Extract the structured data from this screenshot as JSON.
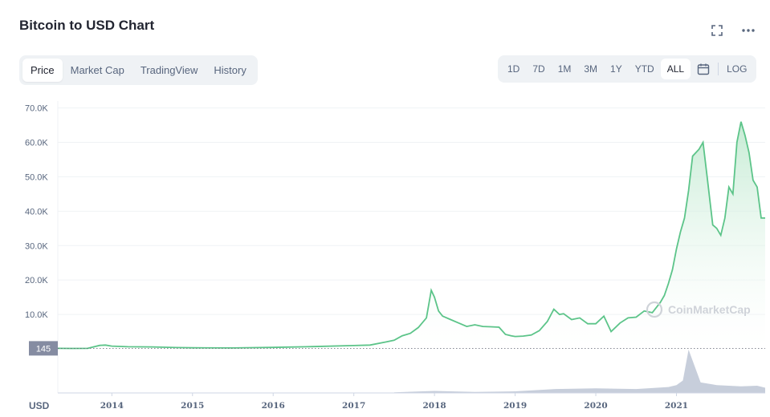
{
  "header": {
    "title": "Bitcoin to USD Chart",
    "expand_icon": "expand-icon",
    "more_icon": "more-icon"
  },
  "tabs": [
    {
      "label": "Price",
      "active": true
    },
    {
      "label": "Market Cap",
      "active": false
    },
    {
      "label": "TradingView",
      "active": false
    },
    {
      "label": "History",
      "active": false
    }
  ],
  "ranges": [
    {
      "label": "1D",
      "active": false
    },
    {
      "label": "7D",
      "active": false
    },
    {
      "label": "1M",
      "active": false
    },
    {
      "label": "3M",
      "active": false
    },
    {
      "label": "1Y",
      "active": false
    },
    {
      "label": "YTD",
      "active": false
    },
    {
      "label": "ALL",
      "active": true
    }
  ],
  "calendar_icon": "calendar-icon",
  "log_label": "LOG",
  "watermark": "CoinMarketCap",
  "colors": {
    "line": "#5cc489",
    "area_top": "#bfe9cf",
    "baseline_label_bg": "#858ca2",
    "volume": "#c7cedb",
    "grid": "#eff2f5"
  },
  "chart_data": {
    "type": "area",
    "title": "Bitcoin to USD Chart",
    "currency_label": "USD",
    "baseline_label": "145",
    "baseline_value": 145,
    "yticks": [
      {
        "value": 10000,
        "label": "10.0K"
      },
      {
        "value": 20000,
        "label": "20.0K"
      },
      {
        "value": 30000,
        "label": "30.0K"
      },
      {
        "value": 40000,
        "label": "40.0K"
      },
      {
        "value": 50000,
        "label": "50.0K"
      },
      {
        "value": 60000,
        "label": "60.0K"
      },
      {
        "value": 70000,
        "label": "70.0K"
      }
    ],
    "ylim": [
      0,
      72000
    ],
    "xticks": [
      {
        "value": 2014,
        "label": "2014"
      },
      {
        "value": 2015,
        "label": "2015"
      },
      {
        "value": 2016,
        "label": "2016"
      },
      {
        "value": 2017,
        "label": "2017"
      },
      {
        "value": 2018,
        "label": "2018"
      },
      {
        "value": 2019,
        "label": "2019"
      },
      {
        "value": 2020,
        "label": "2020"
      },
      {
        "value": 2021,
        "label": "2021"
      }
    ],
    "xlim": [
      2013.33,
      2022.1
    ],
    "series": [
      {
        "x": [
          2013.33,
          2013.5,
          2013.7,
          2013.85,
          2013.92,
          2014.0,
          2014.2,
          2014.5,
          2014.8,
          2015.0,
          2015.5,
          2016.0,
          2016.5,
          2017.0,
          2017.2,
          2017.4,
          2017.5,
          2017.6,
          2017.7,
          2017.8,
          2017.9,
          2017.96,
          2018.0,
          2018.05,
          2018.1,
          2018.2,
          2018.3,
          2018.4,
          2018.5,
          2018.6,
          2018.7,
          2018.8,
          2018.88,
          2018.95,
          2019.0,
          2019.1,
          2019.2,
          2019.3,
          2019.4,
          2019.48,
          2019.55,
          2019.6,
          2019.7,
          2019.8,
          2019.9,
          2020.0,
          2020.1,
          2020.19,
          2020.3,
          2020.4,
          2020.5,
          2020.6,
          2020.7,
          2020.8,
          2020.85,
          2020.9,
          2020.95,
          2021.0,
          2021.05,
          2021.1,
          2021.15,
          2021.2,
          2021.28,
          2021.33,
          2021.38,
          2021.45,
          2021.5,
          2021.55,
          2021.6,
          2021.65,
          2021.7,
          2021.75,
          2021.8,
          2021.85,
          2021.9,
          2021.95,
          2022.0,
          2022.05,
          2022.1
        ],
        "y": [
          145,
          110,
          130,
          1000,
          1100,
          800,
          600,
          550,
          380,
          300,
          250,
          420,
          650,
          950,
          1100,
          2000,
          2500,
          3800,
          4500,
          6200,
          9000,
          17000,
          15000,
          11000,
          9500,
          8500,
          7500,
          6500,
          7000,
          6500,
          6400,
          6300,
          4200,
          3800,
          3600,
          3700,
          4000,
          5300,
          8000,
          11500,
          10000,
          10200,
          8500,
          9000,
          7300,
          7300,
          9500,
          5000,
          7500,
          9000,
          9200,
          11000,
          10500,
          13500,
          15500,
          19000,
          23000,
          29000,
          34000,
          38000,
          46000,
          56000,
          58000,
          60000,
          50000,
          36000,
          35000,
          33000,
          38000,
          47000,
          45000,
          60000,
          66000,
          62000,
          57000,
          49000,
          47000,
          38000,
          38000
        ]
      }
    ],
    "volume": {
      "x": [
        2017.5,
        2018.0,
        2018.5,
        2019.0,
        2019.5,
        2020.0,
        2020.5,
        2020.9,
        2021.0,
        2021.08,
        2021.15,
        2021.3,
        2021.5,
        2021.8,
        2022.0,
        2022.1
      ],
      "y": [
        5,
        15,
        8,
        12,
        30,
        35,
        30,
        45,
        60,
        95,
        330,
        80,
        60,
        50,
        55,
        40
      ]
    },
    "grid": true
  }
}
